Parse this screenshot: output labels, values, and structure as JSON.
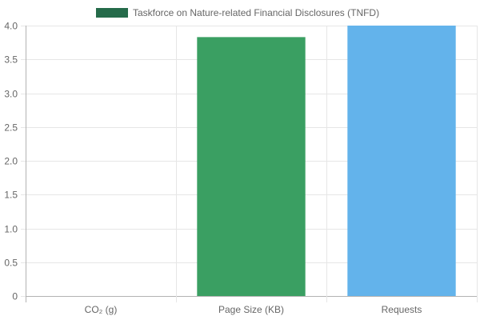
{
  "chart_data": {
    "type": "bar",
    "categories": [
      "CO₂ (g)",
      "Page Size (KB)",
      "Requests"
    ],
    "values": [
      0,
      3.83,
      4.0
    ],
    "bar_colors": [
      "#3a9f62",
      "#3a9f62",
      "#63b3eb"
    ],
    "ylim": [
      0,
      4.0
    ],
    "yticks": [
      0,
      0.5,
      1.0,
      1.5,
      2.0,
      2.5,
      3.0,
      3.5,
      4.0
    ],
    "ytick_labels": [
      "0",
      "0.5",
      "1.0",
      "1.5",
      "2.0",
      "2.5",
      "3.0",
      "3.5",
      "4.0"
    ],
    "grid": true,
    "legend": {
      "position": "top",
      "entries": [
        {
          "label": "Taskforce on Nature-related Financial Disclosures (TNFD)",
          "color": "#256b4a"
        }
      ]
    }
  }
}
